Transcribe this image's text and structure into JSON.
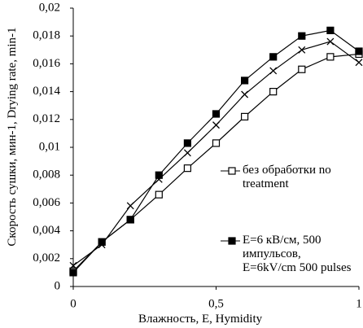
{
  "chart_data": {
    "type": "line",
    "x_label": "Влажность, E, Hymidity",
    "y_label": "Скорость сушки, мин-1, Drying rate, min-1",
    "x": [
      0,
      0.1,
      0.2,
      0.3,
      0.4,
      0.5,
      0.6,
      0.7,
      0.8,
      0.9,
      1.0
    ],
    "series": [
      {
        "name": "без обработки no treatment",
        "color": "#000000",
        "marker": "open-square",
        "values": [
          0.0011,
          0.0032,
          0.0048,
          0.0066,
          0.0085,
          0.0103,
          0.0122,
          0.014,
          0.0156,
          0.0165,
          0.0167
        ]
      },
      {
        "name": "E=6 кВ/см, 500 импульсов, E=6kV/cm 500 pulses",
        "color": "#000000",
        "marker": "filled-square",
        "values": [
          0.001,
          0.0032,
          0.0048,
          0.008,
          0.0103,
          0.0124,
          0.0148,
          0.0165,
          0.018,
          0.0184,
          0.0169
        ]
      },
      {
        "color": "#000000",
        "marker": "cross",
        "values": [
          0.0015,
          0.003,
          0.0058,
          0.0077,
          0.0096,
          0.0116,
          0.0138,
          0.0155,
          0.017,
          0.0176,
          0.0161
        ]
      }
    ],
    "xlim": [
      0,
      1
    ],
    "xticks": [
      0,
      {
        "value": 0.5,
        "label": "0,5"
      },
      1
    ],
    "ylim": [
      0,
      0.02
    ],
    "yticks": [
      0,
      {
        "value": 0.002,
        "label": "0,002"
      },
      {
        "value": 0.004,
        "label": "0,004"
      },
      {
        "value": 0.006,
        "label": "0,006"
      },
      {
        "value": 0.008,
        "label": "0,008"
      },
      {
        "value": 0.01,
        "label": "0,01"
      },
      {
        "value": 0.012,
        "label": "0,012"
      },
      {
        "value": 0.014,
        "label": "0,014"
      },
      {
        "value": 0.016,
        "label": "0,016"
      },
      {
        "value": 0.018,
        "label": "0,018"
      },
      {
        "value": 0.02,
        "label": "0,02"
      }
    ],
    "grid": false
  }
}
